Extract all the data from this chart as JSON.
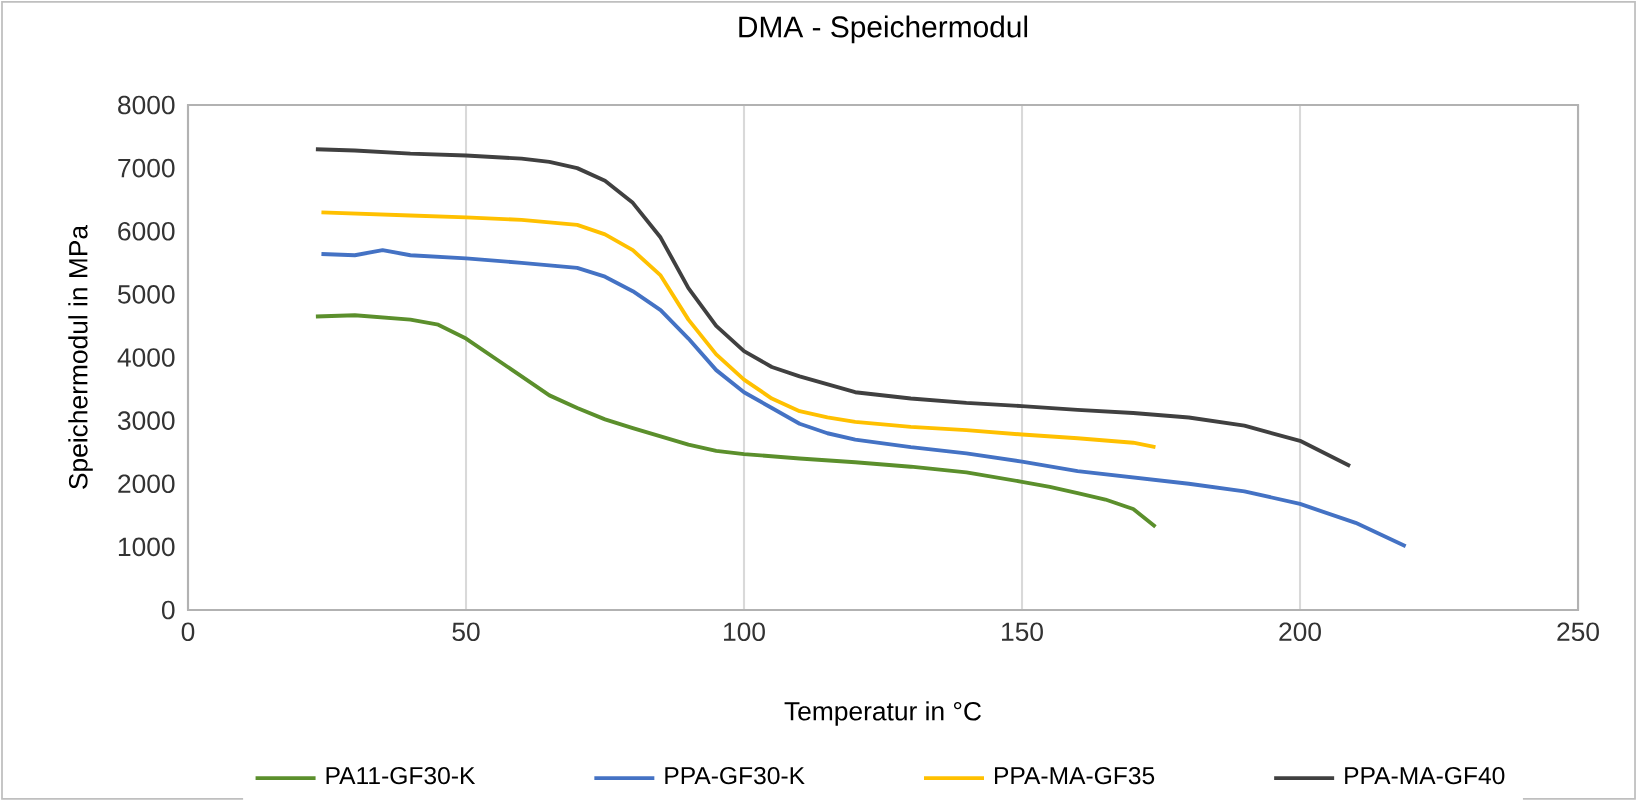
{
  "chart_data": {
    "type": "line",
    "title": "DMA - Speichermodul",
    "xlabel": "Temperatur in °C",
    "ylabel": "Speichermodul in MPa",
    "xlim": [
      0,
      250
    ],
    "xticks": [
      0,
      50,
      100,
      150,
      200,
      250
    ],
    "ylim": [
      0,
      8000
    ],
    "yticks": [
      0,
      1000,
      2000,
      3000,
      4000,
      5000,
      6000,
      7000,
      8000
    ],
    "grid": "x",
    "legend": "bottom",
    "marker": "none",
    "line_style": "solid",
    "series": [
      {
        "name": "PA11-GF30-K",
        "color": "#5b8f2c",
        "x": [
          23,
          30,
          40,
          45,
          50,
          55,
          60,
          65,
          70,
          75,
          80,
          85,
          90,
          95,
          100,
          110,
          120,
          130,
          140,
          150,
          155,
          160,
          165,
          170,
          174
        ],
        "values": [
          4650,
          4670,
          4600,
          4520,
          4300,
          4000,
          3700,
          3400,
          3200,
          3020,
          2880,
          2750,
          2620,
          2520,
          2470,
          2400,
          2340,
          2270,
          2180,
          2030,
          1950,
          1850,
          1750,
          1600,
          1320
        ]
      },
      {
        "name": "PPA-GF30-K",
        "color": "#4472c4",
        "x": [
          24,
          30,
          35,
          40,
          50,
          60,
          70,
          75,
          80,
          85,
          90,
          95,
          100,
          105,
          110,
          115,
          120,
          130,
          140,
          150,
          160,
          170,
          180,
          190,
          200,
          210,
          219
        ],
        "values": [
          5640,
          5620,
          5700,
          5620,
          5570,
          5500,
          5420,
          5280,
          5050,
          4750,
          4300,
          3800,
          3450,
          3200,
          2950,
          2800,
          2700,
          2580,
          2480,
          2350,
          2200,
          2100,
          2000,
          1880,
          1680,
          1380,
          1010
        ]
      },
      {
        "name": "PPA-MA-GF35",
        "color": "#ffc000",
        "x": [
          24,
          40,
          50,
          60,
          70,
          75,
          80,
          85,
          90,
          95,
          100,
          105,
          110,
          115,
          120,
          130,
          140,
          150,
          160,
          170,
          174
        ],
        "values": [
          6300,
          6250,
          6220,
          6180,
          6100,
          5950,
          5700,
          5300,
          4600,
          4050,
          3650,
          3350,
          3150,
          3050,
          2980,
          2900,
          2850,
          2780,
          2720,
          2650,
          2580
        ]
      },
      {
        "name": "PPA-MA-GF40",
        "color": "#404040",
        "x": [
          23,
          30,
          40,
          50,
          60,
          65,
          70,
          75,
          80,
          85,
          90,
          95,
          100,
          105,
          110,
          120,
          130,
          140,
          150,
          160,
          170,
          180,
          190,
          200,
          209
        ],
        "values": [
          7300,
          7280,
          7230,
          7200,
          7150,
          7100,
          7000,
          6800,
          6450,
          5900,
          5100,
          4500,
          4100,
          3850,
          3700,
          3450,
          3350,
          3280,
          3230,
          3170,
          3120,
          3050,
          2920,
          2680,
          2280
        ]
      }
    ]
  }
}
